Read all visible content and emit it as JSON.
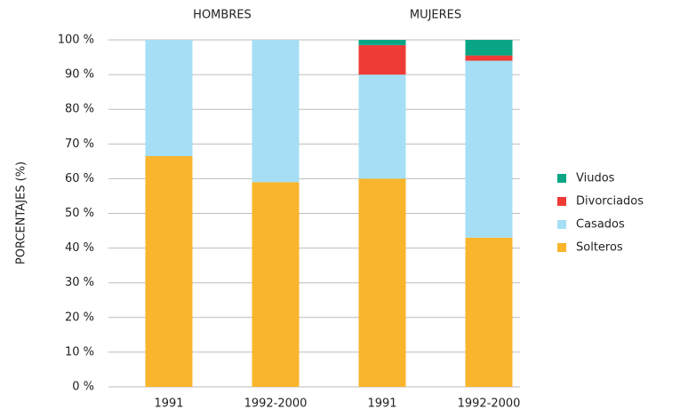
{
  "chart_data": {
    "type": "stacked_bar",
    "groups": [
      "HOMBRES",
      "MUJERES"
    ],
    "categories": [
      "1991",
      "1992-2000",
      "1991",
      "1992-2000"
    ],
    "ylabel": "PORCENTAJES (%)",
    "series": [
      {
        "name": "Solteros",
        "color": "#f9b52b",
        "values": [
          66.5,
          59,
          60,
          43
        ]
      },
      {
        "name": "Casados",
        "color": "#a6dff5",
        "values": [
          33.5,
          41,
          30,
          51
        ]
      },
      {
        "name": "Divorciados",
        "color": "#ef3b36",
        "values": [
          0,
          0,
          8.5,
          1.5
        ]
      },
      {
        "name": "Viudos",
        "color": "#0aa585",
        "values": [
          0,
          0,
          1.5,
          4.5
        ]
      }
    ],
    "ylim": [
      0,
      100
    ],
    "yticks": [
      {
        "value": 0,
        "label": "0 %"
      },
      {
        "value": 10,
        "label": "10 %"
      },
      {
        "value": 20,
        "label": "20 %"
      },
      {
        "value": 30,
        "label": "30 %"
      },
      {
        "value": 40,
        "label": "40 %"
      },
      {
        "value": 50,
        "label": "50 %"
      },
      {
        "value": 60,
        "label": "60 %"
      },
      {
        "value": 70,
        "label": "70 %"
      },
      {
        "value": 80,
        "label": "80 %"
      },
      {
        "value": 90,
        "label": "90 %"
      },
      {
        "value": 100,
        "label": "100 %"
      }
    ],
    "grid": true,
    "legend": "right"
  }
}
